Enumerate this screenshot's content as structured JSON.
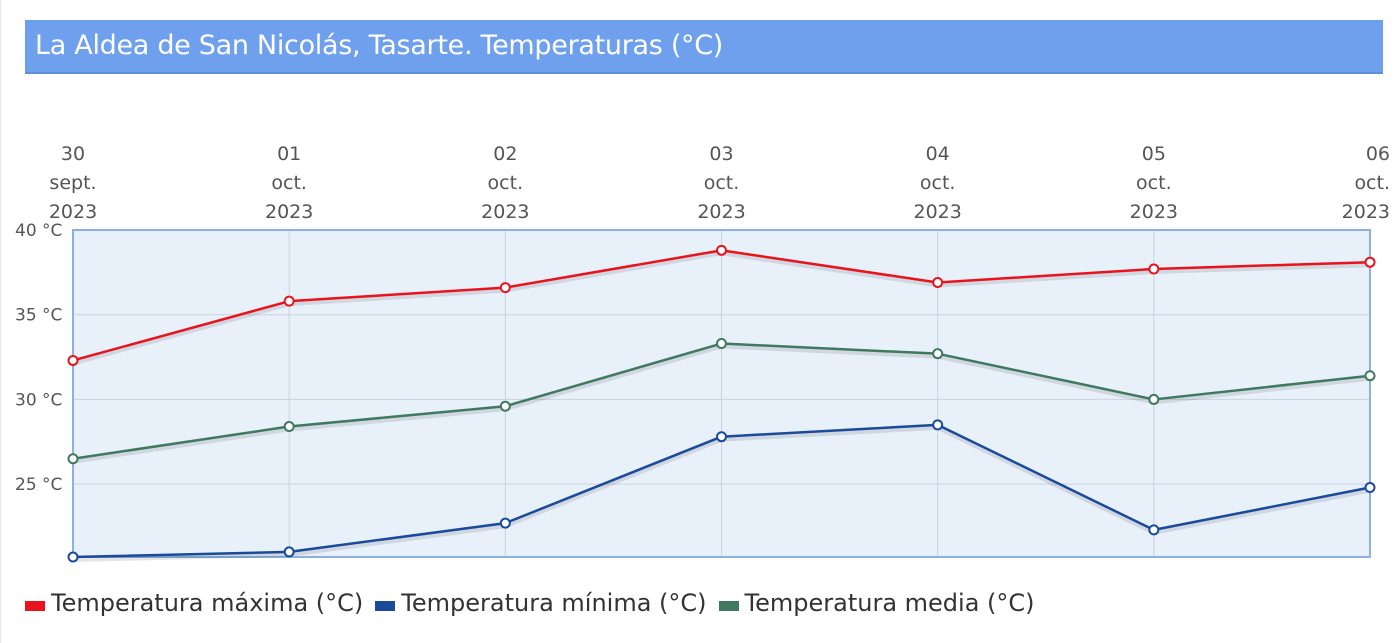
{
  "title": "La Aldea de San Nicolás, Tasarte. Temperaturas (°C)",
  "chart_data": {
    "type": "line",
    "title": "La Aldea de San Nicolás, Tasarte. Temperaturas (°C)",
    "x": [
      {
        "day": "30",
        "month": "sept.",
        "year": "2023"
      },
      {
        "day": "01",
        "month": "oct.",
        "year": "2023"
      },
      {
        "day": "02",
        "month": "oct.",
        "year": "2023"
      },
      {
        "day": "03",
        "month": "oct.",
        "year": "2023"
      },
      {
        "day": "04",
        "month": "oct.",
        "year": "2023"
      },
      {
        "day": "05",
        "month": "oct.",
        "year": "2023"
      },
      {
        "day": "06",
        "month": "oct.",
        "year": "2023"
      }
    ],
    "y_ticks": [
      {
        "value": 40,
        "label": "40 °C"
      },
      {
        "value": 35,
        "label": "35 °C"
      },
      {
        "value": 30,
        "label": "30 °C"
      },
      {
        "value": 25,
        "label": "25 °C"
      }
    ],
    "ylim": [
      20.7,
      40
    ],
    "grid": true,
    "legend_position": "bottom-left",
    "series": [
      {
        "name": "Temperatura máxima (°C)",
        "color": "#e8141c",
        "values": [
          32.3,
          35.8,
          36.6,
          38.8,
          36.9,
          37.7,
          38.1
        ]
      },
      {
        "name": "Temperatura mínima (°C)",
        "color": "#1a4a9a",
        "values": [
          20.7,
          21.0,
          22.7,
          27.8,
          28.5,
          22.3,
          24.8
        ]
      },
      {
        "name": "Temperatura media (°C)",
        "color": "#3f7a5e",
        "values": [
          26.5,
          28.4,
          29.6,
          33.3,
          32.7,
          30.0,
          31.4
        ]
      }
    ]
  }
}
